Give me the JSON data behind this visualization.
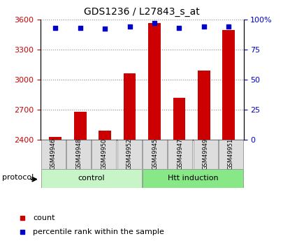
{
  "title": "GDS1236 / L27843_s_at",
  "samples": [
    "GSM49946",
    "GSM49948",
    "GSM49950",
    "GSM49952",
    "GSM49945",
    "GSM49947",
    "GSM49949",
    "GSM49951"
  ],
  "counts": [
    2430,
    2680,
    2490,
    3060,
    3560,
    2820,
    3090,
    3490
  ],
  "percentile_ranks": [
    93,
    93,
    92,
    94,
    97,
    93,
    94,
    94
  ],
  "groups": [
    "control",
    "control",
    "control",
    "control",
    "Htt induction",
    "Htt induction",
    "Htt induction",
    "Htt induction"
  ],
  "group_colors": {
    "control": "#c8f5c8",
    "Htt induction": "#88e888"
  },
  "bar_color": "#cc0000",
  "dot_color": "#0000cc",
  "sample_box_color": "#dddddd",
  "ymin": 2400,
  "ymax": 3600,
  "yticks": [
    2400,
    2700,
    3000,
    3300,
    3600
  ],
  "y2min": 0,
  "y2max": 100,
  "y2ticks": [
    0,
    25,
    50,
    75,
    100
  ],
  "y2ticklabels": [
    "0",
    "25",
    "50",
    "75",
    "100%"
  ],
  "bg_color": "#ffffff",
  "grid_color": "#888888",
  "tick_label_color_left": "#cc0000",
  "tick_label_color_right": "#0000cc"
}
